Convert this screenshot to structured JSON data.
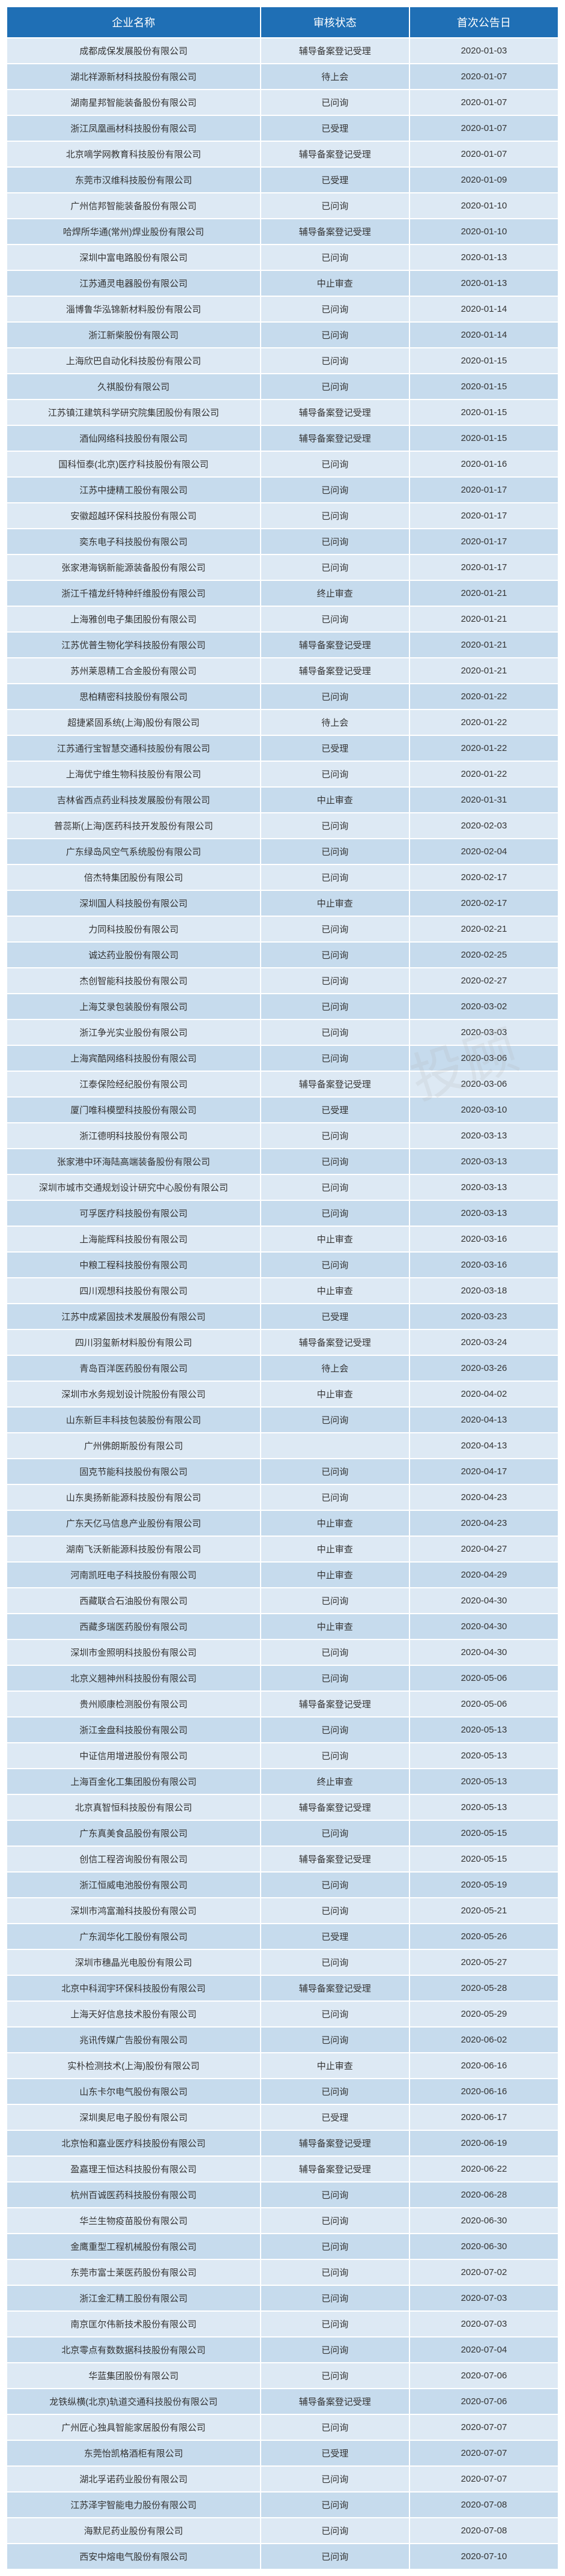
{
  "watermark": "投顾",
  "table": {
    "header_bg": "#1f6fb5",
    "header_fg": "#ffffff",
    "row_odd_bg": "#dde9f4",
    "row_even_bg": "#c6dbed",
    "columns": [
      "企业名称",
      "审核状态",
      "首次公告日"
    ],
    "rows": [
      [
        "成都成保发展股份有限公司",
        "辅导备案登记受理",
        "2020-01-03"
      ],
      [
        "湖北祥源新材科技股份有限公司",
        "待上会",
        "2020-01-07"
      ],
      [
        "湖南星邦智能装备股份有限公司",
        "已问询",
        "2020-01-07"
      ],
      [
        "浙江凤凰画材科技股份有限公司",
        "已受理",
        "2020-01-07"
      ],
      [
        "北京嘀学网教育科技股份有限公司",
        "辅导备案登记受理",
        "2020-01-07"
      ],
      [
        "东莞市汉维科技股份有限公司",
        "已受理",
        "2020-01-09"
      ],
      [
        "广州信邦智能装备股份有限公司",
        "已问询",
        "2020-01-10"
      ],
      [
        "哈焊所华通(常州)焊业股份有限公司",
        "辅导备案登记受理",
        "2020-01-10"
      ],
      [
        "深圳中富电路股份有限公司",
        "已问询",
        "2020-01-13"
      ],
      [
        "江苏通灵电器股份有限公司",
        "中止审查",
        "2020-01-13"
      ],
      [
        "淄博鲁华泓锦新材料股份有限公司",
        "已问询",
        "2020-01-14"
      ],
      [
        "浙江新柴股份有限公司",
        "已问询",
        "2020-01-14"
      ],
      [
        "上海欣巴自动化科技股份有限公司",
        "已问询",
        "2020-01-15"
      ],
      [
        "久祺股份有限公司",
        "已问询",
        "2020-01-15"
      ],
      [
        "江苏镇江建筑科学研究院集团股份有限公司",
        "辅导备案登记受理",
        "2020-01-15"
      ],
      [
        "酒仙网络科技股份有限公司",
        "辅导备案登记受理",
        "2020-01-15"
      ],
      [
        "国科恒泰(北京)医疗科技股份有限公司",
        "已问询",
        "2020-01-16"
      ],
      [
        "江苏中捷精工股份有限公司",
        "已问询",
        "2020-01-17"
      ],
      [
        "安徽超越环保科技股份有限公司",
        "已问询",
        "2020-01-17"
      ],
      [
        "奕东电子科技股份有限公司",
        "已问询",
        "2020-01-17"
      ],
      [
        "张家港海锅新能源装备股份有限公司",
        "已问询",
        "2020-01-17"
      ],
      [
        "浙江千禧龙纤特种纤维股份有限公司",
        "终止审查",
        "2020-01-21"
      ],
      [
        "上海雅创电子集团股份有限公司",
        "已问询",
        "2020-01-21"
      ],
      [
        "江苏优普生物化学科技股份有限公司",
        "辅导备案登记受理",
        "2020-01-21"
      ],
      [
        "苏州莱恩精工合金股份有限公司",
        "辅导备案登记受理",
        "2020-01-21"
      ],
      [
        "思柏精密科技股份有限公司",
        "已问询",
        "2020-01-22"
      ],
      [
        "超捷紧固系统(上海)股份有限公司",
        "待上会",
        "2020-01-22"
      ],
      [
        "江苏通行宝智慧交通科技股份有限公司",
        "已受理",
        "2020-01-22"
      ],
      [
        "上海优宁维生物科技股份有限公司",
        "已问询",
        "2020-01-22"
      ],
      [
        "吉林省西点药业科技发展股份有限公司",
        "中止审查",
        "2020-01-31"
      ],
      [
        "普蕊斯(上海)医药科技开发股份有限公司",
        "已问询",
        "2020-02-03"
      ],
      [
        "广东绿岛风空气系统股份有限公司",
        "已问询",
        "2020-02-04"
      ],
      [
        "倍杰特集团股份有限公司",
        "已问询",
        "2020-02-17"
      ],
      [
        "深圳国人科技股份有限公司",
        "中止审查",
        "2020-02-17"
      ],
      [
        "力同科技股份有限公司",
        "已问询",
        "2020-02-21"
      ],
      [
        "诚达药业股份有限公司",
        "已问询",
        "2020-02-25"
      ],
      [
        "杰创智能科技股份有限公司",
        "已问询",
        "2020-02-27"
      ],
      [
        "上海艾录包装股份有限公司",
        "已问询",
        "2020-03-02"
      ],
      [
        "浙江争光实业股份有限公司",
        "已问询",
        "2020-03-03"
      ],
      [
        "上海宾酷网络科技股份有限公司",
        "已问询",
        "2020-03-06"
      ],
      [
        "江泰保险经纪股份有限公司",
        "辅导备案登记受理",
        "2020-03-06"
      ],
      [
        "厦门唯科模塑科技股份有限公司",
        "已受理",
        "2020-03-10"
      ],
      [
        "浙江德明科技股份有限公司",
        "已问询",
        "2020-03-13"
      ],
      [
        "张家港中环海陆高端装备股份有限公司",
        "已问询",
        "2020-03-13"
      ],
      [
        "深圳市城市交通规划设计研究中心股份有限公司",
        "已问询",
        "2020-03-13"
      ],
      [
        "可孚医疗科技股份有限公司",
        "已问询",
        "2020-03-13"
      ],
      [
        "上海能辉科技股份有限公司",
        "中止审查",
        "2020-03-16"
      ],
      [
        "中粮工程科技股份有限公司",
        "已问询",
        "2020-03-16"
      ],
      [
        "四川观想科技股份有限公司",
        "中止审查",
        "2020-03-18"
      ],
      [
        "江苏中成紧固技术发展股份有限公司",
        "已受理",
        "2020-03-23"
      ],
      [
        "四川羽玺新材料股份有限公司",
        "辅导备案登记受理",
        "2020-03-24"
      ],
      [
        "青岛百洋医药股份有限公司",
        "待上会",
        "2020-03-26"
      ],
      [
        "深圳市水务规划设计院股份有限公司",
        "中止审查",
        "2020-04-02"
      ],
      [
        "山东新巨丰科技包装股份有限公司",
        "已问询",
        "2020-04-13"
      ],
      [
        "广州佛朗斯股份有限公司",
        "",
        "2020-04-13"
      ],
      [
        "固克节能科技股份有限公司",
        "已问询",
        "2020-04-17"
      ],
      [
        "山东奥扬新能源科技股份有限公司",
        "已问询",
        "2020-04-23"
      ],
      [
        "广东天亿马信息产业股份有限公司",
        "中止审查",
        "2020-04-23"
      ],
      [
        "湖南飞沃新能源科技股份有限公司",
        "中止审查",
        "2020-04-27"
      ],
      [
        "河南凯旺电子科技股份有限公司",
        "中止审查",
        "2020-04-29"
      ],
      [
        "西藏联合石油股份有限公司",
        "已问询",
        "2020-04-30"
      ],
      [
        "西藏多瑞医药股份有限公司",
        "中止审查",
        "2020-04-30"
      ],
      [
        "深圳市金照明科技股份有限公司",
        "已问询",
        "2020-04-30"
      ],
      [
        "北京义翘神州科技股份有限公司",
        "已问询",
        "2020-05-06"
      ],
      [
        "贵州顺康检测股份有限公司",
        "辅导备案登记受理",
        "2020-05-06"
      ],
      [
        "浙江金盘科技股份有限公司",
        "已问询",
        "2020-05-13"
      ],
      [
        "中证信用增进股份有限公司",
        "已问询",
        "2020-05-13"
      ],
      [
        "上海百金化工集团股份有限公司",
        "终止审查",
        "2020-05-13"
      ],
      [
        "北京真智恒科技股份有限公司",
        "辅导备案登记受理",
        "2020-05-13"
      ],
      [
        "广东真美食品股份有限公司",
        "已问询",
        "2020-05-15"
      ],
      [
        "创信工程咨询股份有限公司",
        "辅导备案登记受理",
        "2020-05-15"
      ],
      [
        "浙江恒威电池股份有限公司",
        "已问询",
        "2020-05-19"
      ],
      [
        "深圳市鸿富瀚科技股份有限公司",
        "已问询",
        "2020-05-21"
      ],
      [
        "广东润华化工股份有限公司",
        "已受理",
        "2020-05-26"
      ],
      [
        "深圳市穗晶光电股份有限公司",
        "已问询",
        "2020-05-27"
      ],
      [
        "北京中科润宇环保科技股份有限公司",
        "辅导备案登记受理",
        "2020-05-28"
      ],
      [
        "上海天好信息技术股份有限公司",
        "已问询",
        "2020-05-29"
      ],
      [
        "兆讯传媒广告股份有限公司",
        "已问询",
        "2020-06-02"
      ],
      [
        "实朴检测技术(上海)股份有限公司",
        "中止审查",
        "2020-06-16"
      ],
      [
        "山东卡尔电气股份有限公司",
        "已问询",
        "2020-06-16"
      ],
      [
        "深圳奥尼电子股份有限公司",
        "已受理",
        "2020-06-17"
      ],
      [
        "北京怡和嘉业医疗科技股份有限公司",
        "辅导备案登记受理",
        "2020-06-19"
      ],
      [
        "盈嘉理王恒达科技股份有限公司",
        "辅导备案登记受理",
        "2020-06-22"
      ],
      [
        "杭州百诚医药科技股份有限公司",
        "已问询",
        "2020-06-28"
      ],
      [
        "华兰生物疫苗股份有限公司",
        "已问询",
        "2020-06-30"
      ],
      [
        "金鹰重型工程机械股份有限公司",
        "已问询",
        "2020-06-30"
      ],
      [
        "东莞市富士莱医药股份有限公司",
        "已问询",
        "2020-07-02"
      ],
      [
        "浙江金汇精工股份有限公司",
        "已问询",
        "2020-07-03"
      ],
      [
        "南京匡尔伟新技术股份有限公司",
        "已问询",
        "2020-07-03"
      ],
      [
        "北京零点有数数据科技股份有限公司",
        "已问询",
        "2020-07-04"
      ],
      [
        "华蓝集团股份有限公司",
        "已问询",
        "2020-07-06"
      ],
      [
        "龙铁纵横(北京)轨道交通科技股份有限公司",
        "辅导备案登记受理",
        "2020-07-06"
      ],
      [
        "广州匠心独具智能家居股份有限公司",
        "已问询",
        "2020-07-07"
      ],
      [
        "东莞怡凯格酒柜有限公司",
        "已受理",
        "2020-07-07"
      ],
      [
        "湖北孚诺药业股份有限公司",
        "已问询",
        "2020-07-07"
      ],
      [
        "江苏泽宇智能电力股份有限公司",
        "已问询",
        "2020-07-08"
      ],
      [
        "海默尼药业股份有限公司",
        "已问询",
        "2020-07-08"
      ],
      [
        "西安中熔电气股份有限公司",
        "已问询",
        "2020-07-10"
      ]
    ]
  }
}
